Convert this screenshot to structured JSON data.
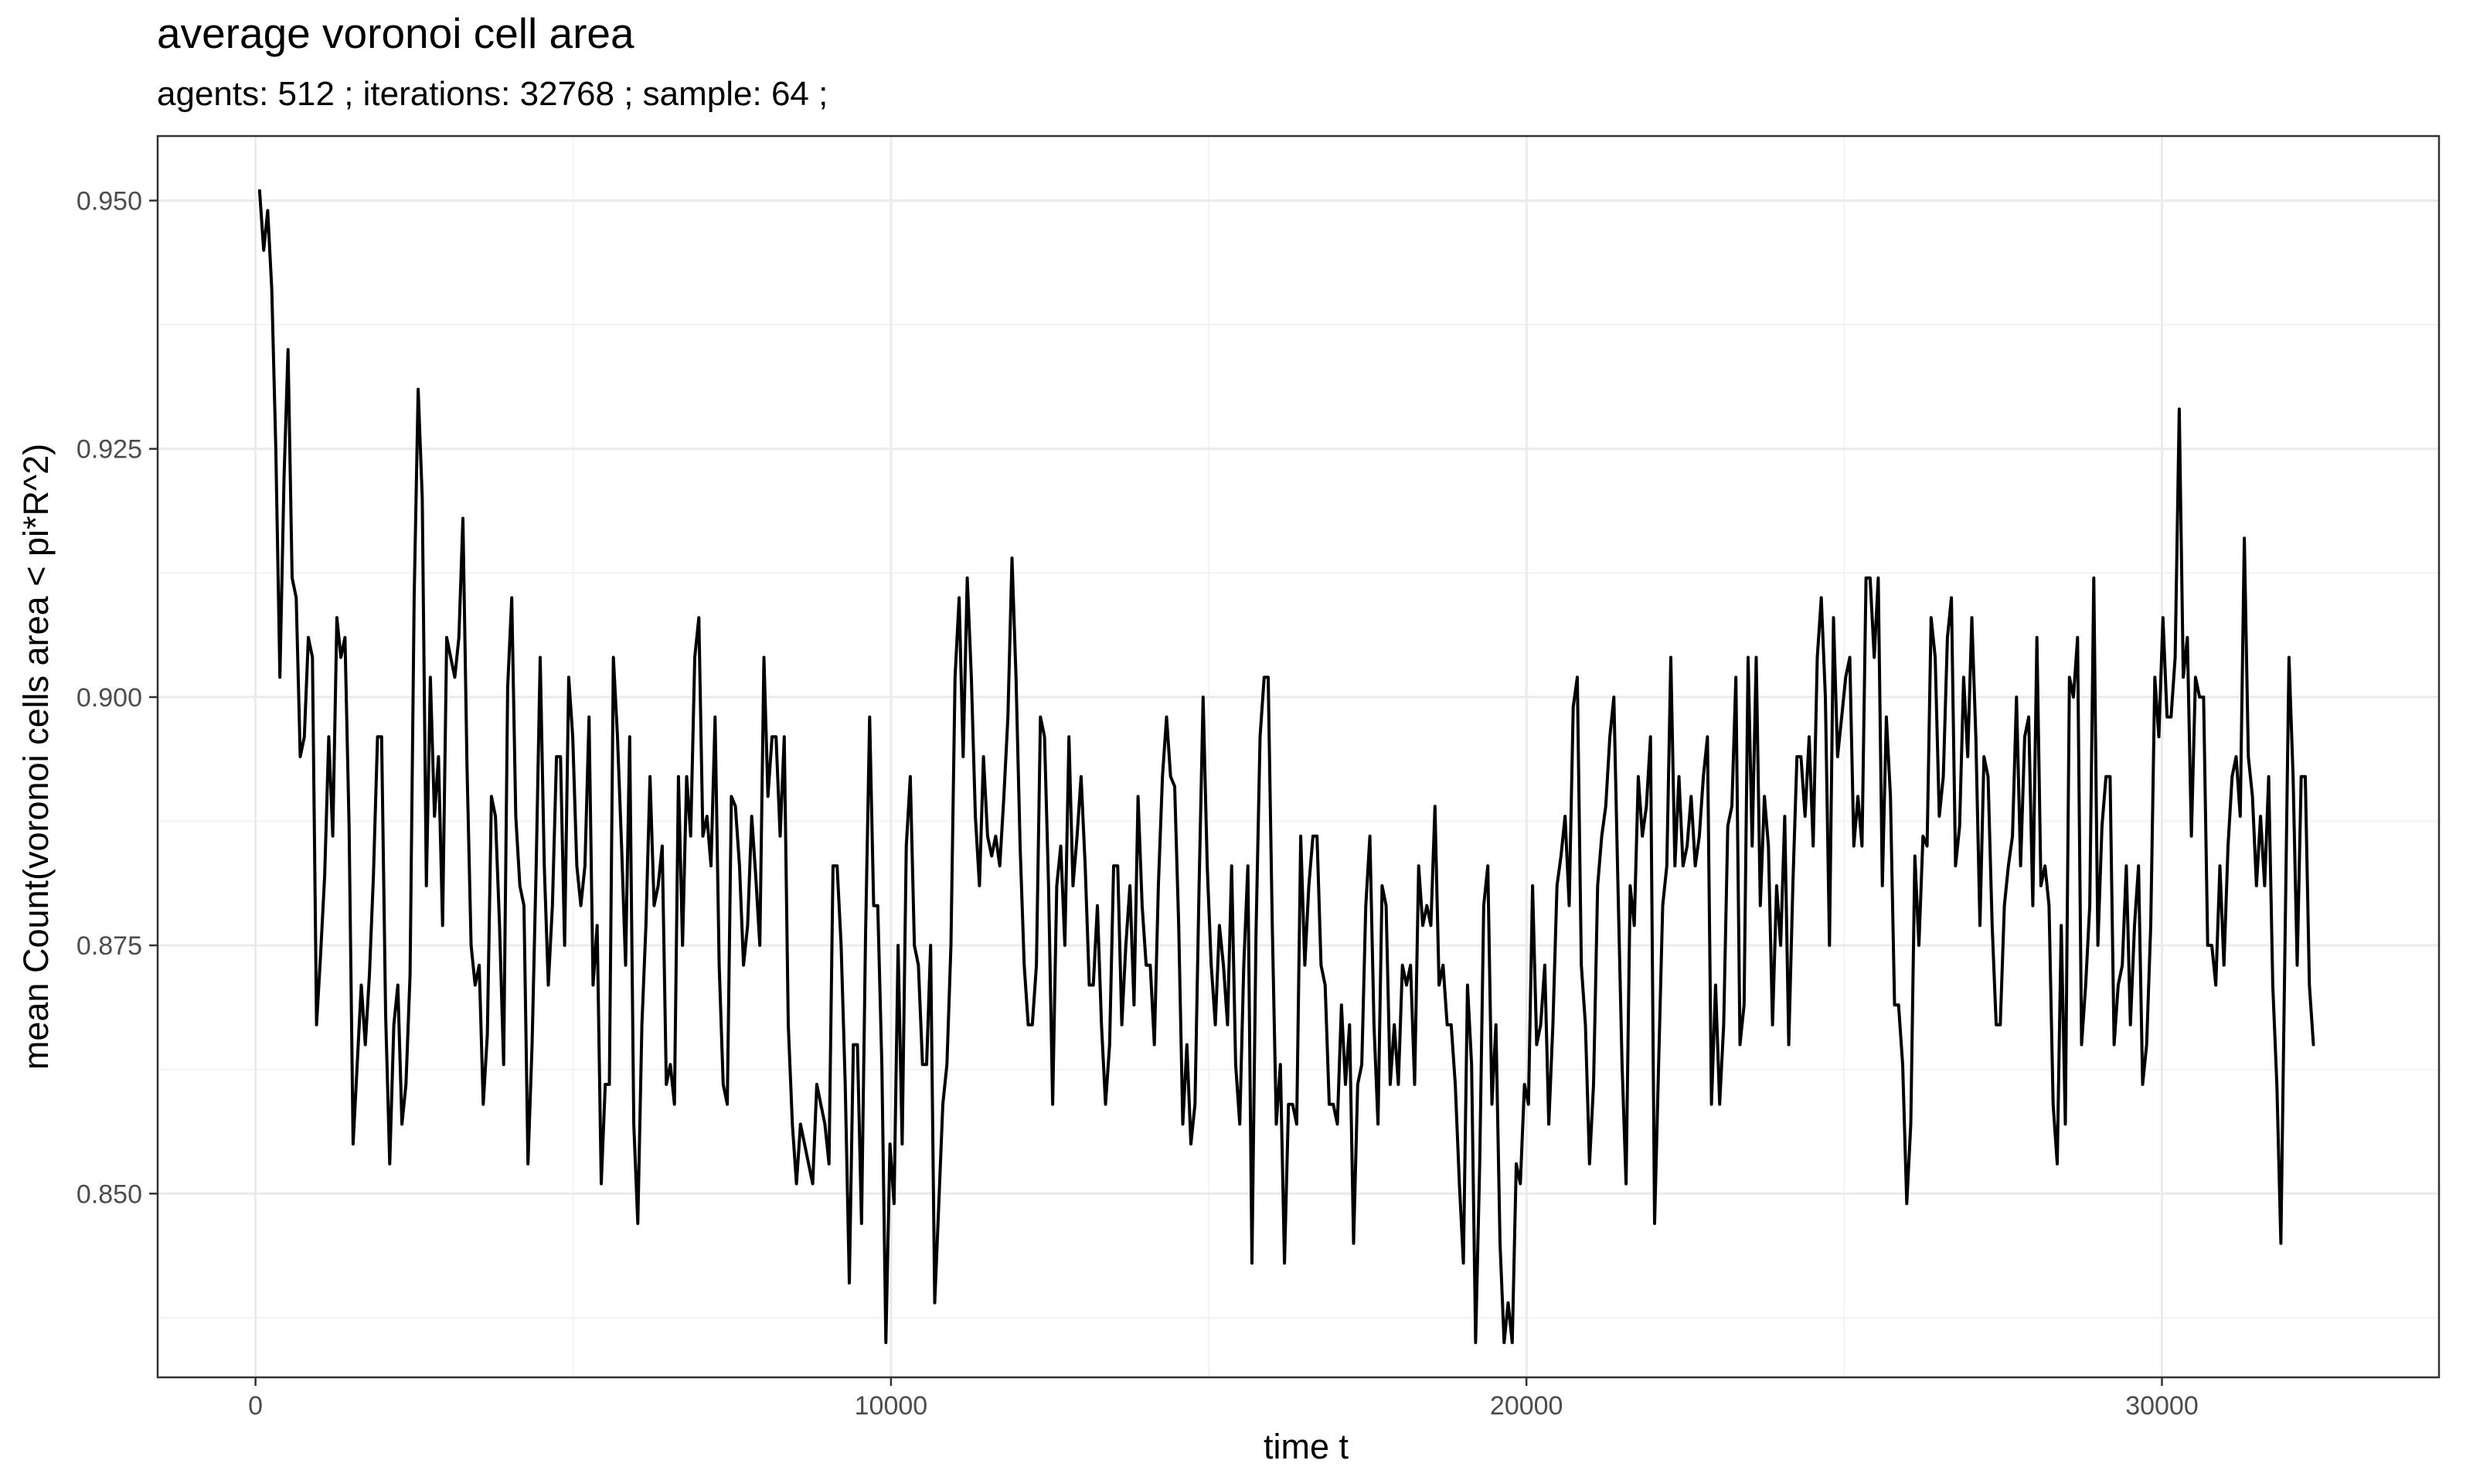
{
  "chart_data": {
    "type": "line",
    "title": "average voronoi cell area",
    "subtitle": "agents: 512 ; iterations: 32768 ; sample: 64 ;",
    "xlabel": "time t",
    "ylabel": "mean Count(voronoi cells area < pi*R^2)",
    "xlim": [
      -1540,
      34360
    ],
    "ylim": [
      0.8315,
      0.9565
    ],
    "x_major_ticks": [
      0,
      10000,
      20000,
      30000
    ],
    "x_minor_ticks": [
      5000,
      15000,
      25000
    ],
    "y_major_ticks": [
      0.85,
      0.875,
      0.9,
      0.925,
      0.95
    ],
    "y_minor_ticks": [
      0.8375,
      0.8625,
      0.8875,
      0.9125,
      0.9375
    ],
    "x_tick_labels": [
      "0",
      "10000",
      "20000",
      "30000"
    ],
    "y_tick_labels": [
      "0.850",
      "0.875",
      "0.900",
      "0.925",
      "0.950"
    ],
    "grid": true,
    "legend": "none",
    "colors": {
      "line": "#000000",
      "background": "#ffffff",
      "grid": "#ebebeb"
    },
    "series": [
      {
        "x_start": 64,
        "x_step": 64,
        "values": [
          0.951,
          0.945,
          0.949,
          0.941,
          0.925,
          0.902,
          0.922,
          0.935,
          0.912,
          0.91,
          0.894,
          0.896,
          0.906,
          0.904,
          0.867,
          0.874,
          0.882,
          0.896,
          0.886,
          0.908,
          0.904,
          0.906,
          0.887,
          0.855,
          0.863,
          0.871,
          0.865,
          0.872,
          0.882,
          0.896,
          0.896,
          0.868,
          0.853,
          0.867,
          0.871,
          0.857,
          0.861,
          0.872,
          0.91,
          0.931,
          0.92,
          0.881,
          0.902,
          0.888,
          0.894,
          0.877,
          0.906,
          0.904,
          0.902,
          0.906,
          0.918,
          0.893,
          0.875,
          0.871,
          0.873,
          0.859,
          0.866,
          0.89,
          0.888,
          0.877,
          0.863,
          0.901,
          0.91,
          0.888,
          0.881,
          0.879,
          0.853,
          0.865,
          0.883,
          0.904,
          0.883,
          0.871,
          0.879,
          0.894,
          0.894,
          0.875,
          0.902,
          0.896,
          0.883,
          0.879,
          0.883,
          0.898,
          0.871,
          0.877,
          0.851,
          0.861,
          0.861,
          0.904,
          0.896,
          0.885,
          0.873,
          0.896,
          0.857,
          0.847,
          0.867,
          0.877,
          0.892,
          0.879,
          0.881,
          0.885,
          0.861,
          0.863,
          0.859,
          0.892,
          0.875,
          0.892,
          0.886,
          0.904,
          0.908,
          0.886,
          0.888,
          0.883,
          0.898,
          0.873,
          0.861,
          0.859,
          0.89,
          0.889,
          0.883,
          0.873,
          0.877,
          0.888,
          0.882,
          0.875,
          0.904,
          0.89,
          0.896,
          0.896,
          0.886,
          0.896,
          0.867,
          0.857,
          0.851,
          0.857,
          0.855,
          0.853,
          0.851,
          0.861,
          0.859,
          0.857,
          0.853,
          0.883,
          0.883,
          0.875,
          0.861,
          0.841,
          0.865,
          0.865,
          0.847,
          0.876,
          0.898,
          0.879,
          0.879,
          0.863,
          0.835,
          0.855,
          0.849,
          0.875,
          0.855,
          0.885,
          0.892,
          0.875,
          0.873,
          0.863,
          0.863,
          0.875,
          0.839,
          0.849,
          0.859,
          0.863,
          0.875,
          0.902,
          0.91,
          0.894,
          0.912,
          0.902,
          0.888,
          0.881,
          0.894,
          0.886,
          0.884,
          0.886,
          0.883,
          0.89,
          0.898,
          0.914,
          0.902,
          0.885,
          0.873,
          0.867,
          0.867,
          0.873,
          0.898,
          0.896,
          0.881,
          0.859,
          0.881,
          0.885,
          0.875,
          0.896,
          0.881,
          0.886,
          0.892,
          0.883,
          0.871,
          0.871,
          0.879,
          0.867,
          0.859,
          0.865,
          0.883,
          0.883,
          0.867,
          0.875,
          0.881,
          0.869,
          0.89,
          0.879,
          0.873,
          0.873,
          0.865,
          0.881,
          0.892,
          0.898,
          0.892,
          0.891,
          0.877,
          0.857,
          0.865,
          0.855,
          0.859,
          0.881,
          0.9,
          0.883,
          0.873,
          0.867,
          0.877,
          0.873,
          0.867,
          0.883,
          0.863,
          0.857,
          0.873,
          0.883,
          0.843,
          0.876,
          0.896,
          0.902,
          0.902,
          0.877,
          0.857,
          0.863,
          0.843,
          0.859,
          0.859,
          0.857,
          0.886,
          0.873,
          0.881,
          0.886,
          0.886,
          0.873,
          0.871,
          0.859,
          0.859,
          0.857,
          0.869,
          0.861,
          0.867,
          0.845,
          0.861,
          0.863,
          0.879,
          0.886,
          0.867,
          0.857,
          0.881,
          0.879,
          0.861,
          0.867,
          0.861,
          0.873,
          0.871,
          0.873,
          0.861,
          0.883,
          0.877,
          0.879,
          0.877,
          0.889,
          0.871,
          0.873,
          0.867,
          0.867,
          0.861,
          0.851,
          0.843,
          0.871,
          0.863,
          0.835,
          0.853,
          0.879,
          0.883,
          0.859,
          0.867,
          0.845,
          0.835,
          0.839,
          0.835,
          0.853,
          0.851,
          0.861,
          0.859,
          0.881,
          0.865,
          0.867,
          0.873,
          0.857,
          0.867,
          0.881,
          0.884,
          0.888,
          0.879,
          0.899,
          0.902,
          0.873,
          0.867,
          0.853,
          0.861,
          0.881,
          0.886,
          0.889,
          0.896,
          0.9,
          0.881,
          0.863,
          0.851,
          0.881,
          0.877,
          0.892,
          0.886,
          0.889,
          0.896,
          0.847,
          0.863,
          0.879,
          0.883,
          0.904,
          0.883,
          0.892,
          0.883,
          0.885,
          0.89,
          0.883,
          0.886,
          0.892,
          0.896,
          0.859,
          0.871,
          0.859,
          0.867,
          0.887,
          0.889,
          0.902,
          0.865,
          0.869,
          0.904,
          0.885,
          0.904,
          0.879,
          0.89,
          0.885,
          0.867,
          0.881,
          0.875,
          0.888,
          0.865,
          0.881,
          0.894,
          0.894,
          0.888,
          0.896,
          0.885,
          0.904,
          0.91,
          0.9,
          0.875,
          0.908,
          0.894,
          0.898,
          0.902,
          0.904,
          0.885,
          0.89,
          0.885,
          0.912,
          0.912,
          0.904,
          0.912,
          0.881,
          0.898,
          0.89,
          0.869,
          0.869,
          0.863,
          0.849,
          0.857,
          0.884,
          0.875,
          0.886,
          0.885,
          0.908,
          0.904,
          0.888,
          0.892,
          0.906,
          0.91,
          0.883,
          0.887,
          0.902,
          0.894,
          0.908,
          0.896,
          0.877,
          0.894,
          0.892,
          0.877,
          0.867,
          0.867,
          0.879,
          0.883,
          0.886,
          0.9,
          0.883,
          0.896,
          0.898,
          0.879,
          0.906,
          0.881,
          0.883,
          0.879,
          0.859,
          0.853,
          0.877,
          0.857,
          0.902,
          0.9,
          0.906,
          0.865,
          0.871,
          0.879,
          0.912,
          0.875,
          0.887,
          0.892,
          0.892,
          0.865,
          0.871,
          0.873,
          0.883,
          0.867,
          0.877,
          0.883,
          0.861,
          0.865,
          0.877,
          0.902,
          0.896,
          0.908,
          0.898,
          0.898,
          0.904,
          0.929,
          0.902,
          0.906,
          0.886,
          0.902,
          0.9,
          0.9,
          0.875,
          0.875,
          0.871,
          0.883,
          0.873,
          0.885,
          0.892,
          0.894,
          0.888,
          0.916,
          0.894,
          0.89,
          0.881,
          0.888,
          0.881,
          0.892,
          0.871,
          0.861,
          0.845,
          0.875,
          0.904,
          0.892,
          0.873,
          0.892,
          0.892,
          0.871,
          0.865
        ]
      }
    ]
  }
}
